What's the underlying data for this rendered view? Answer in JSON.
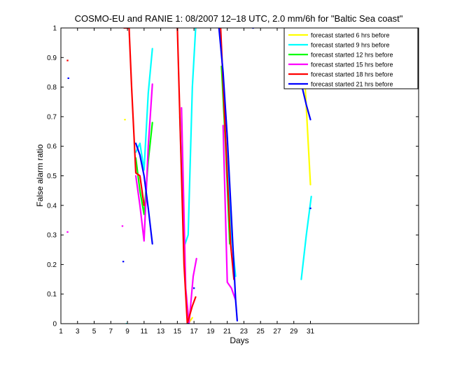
{
  "chart_data": {
    "type": "line",
    "title": "COSMO-EU and RANIE 1: 08/2007 12–18 UTC, 2.0 mm/6h for \"Baltic Sea coast\"",
    "xlabel": "Days",
    "ylabel": "False alarm ratio",
    "xlim": [
      1,
      44
    ],
    "ylim": [
      0,
      1
    ],
    "x_ticks": [
      1,
      3,
      5,
      7,
      9,
      11,
      13,
      15,
      17,
      19,
      21,
      23,
      25,
      27,
      29,
      31
    ],
    "y_ticks": [
      0,
      0.1,
      0.2,
      0.3,
      0.4,
      0.5,
      0.6,
      0.7,
      0.8,
      0.9,
      1
    ],
    "y_tick_labels": [
      "0",
      "0.1",
      "0.2",
      "0.3",
      "0.4",
      "0.5",
      "0.6",
      "0.7",
      "0.8",
      "0.9",
      "1"
    ],
    "grid": false,
    "legend_position": "top-right",
    "series": [
      {
        "name": "forecast started 6 hrs before",
        "color": "#ffff00",
        "segments": [
          [
            [
              8.7,
              0.69
            ]
          ],
          [
            [
              16.3,
              0.0
            ],
            [
              16.8,
              0.02
            ]
          ],
          [
            [
              30.0,
              1.0
            ],
            [
              30.5,
              0.73
            ],
            [
              31.0,
              0.47
            ]
          ]
        ]
      },
      {
        "name": "forecast started 9 hrs before",
        "color": "#00ffff",
        "segments": [
          [
            [
              8.9,
              0.0
            ]
          ],
          [
            [
              10.0,
              0.58
            ],
            [
              10.5,
              0.61
            ],
            [
              11.0,
              0.52
            ],
            [
              11.5,
              0.78
            ],
            [
              12.0,
              0.93
            ]
          ],
          [
            [
              15.3,
              0.7
            ],
            [
              15.8,
              0.26
            ],
            [
              16.3,
              0.3
            ],
            [
              16.8,
              0.8
            ],
            [
              17.2,
              1.0
            ]
          ],
          [
            [
              20.5,
              0.78
            ],
            [
              21.0,
              0.53
            ],
            [
              21.5,
              0.3
            ],
            [
              22.0,
              0.16
            ]
          ],
          [
            [
              29.9,
              0.15
            ],
            [
              30.5,
              0.3
            ],
            [
              31.1,
              0.43
            ]
          ]
        ]
      },
      {
        "name": "forecast started 12 hrs before",
        "color": "#00ff00",
        "segments": [
          [
            [
              10.0,
              0.56
            ],
            [
              10.5,
              0.45
            ],
            [
              11.0,
              0.37
            ],
            [
              11.5,
              0.55
            ],
            [
              12.0,
              0.68
            ]
          ],
          [
            [
              16.3,
              0.0
            ]
          ],
          [
            [
              20.3,
              0.87
            ],
            [
              20.8,
              0.6
            ],
            [
              21.3,
              0.27
            ]
          ]
        ]
      },
      {
        "name": "forecast started 15 hrs before",
        "color": "#ff00ff",
        "segments": [
          [
            [
              1.8,
              0.31
            ]
          ],
          [
            [
              8.4,
              0.33
            ]
          ],
          [
            [
              10.0,
              0.5
            ],
            [
              10.5,
              0.4
            ],
            [
              11.0,
              0.28
            ],
            [
              11.5,
              0.6
            ],
            [
              12.0,
              0.81
            ]
          ],
          [
            [
              15.5,
              0.73
            ],
            [
              16.0,
              0.12
            ],
            [
              16.4,
              0.0
            ],
            [
              16.9,
              0.16
            ],
            [
              17.3,
              0.22
            ]
          ],
          [
            [
              20.5,
              0.67
            ],
            [
              21.0,
              0.14
            ],
            [
              21.5,
              0.12
            ],
            [
              22.0,
              0.08
            ]
          ]
        ]
      },
      {
        "name": "forecast started 18 hrs before",
        "color": "#ff0000",
        "segments": [
          [
            [
              1.8,
              0.89
            ]
          ],
          [
            [
              8.6,
              1.0
            ],
            [
              9.2,
              1.0
            ],
            [
              9.5,
              0.8
            ],
            [
              10.0,
              0.51
            ],
            [
              10.5,
              0.5
            ],
            [
              11.0,
              0.4
            ]
          ],
          [
            [
              15.0,
              1.0
            ],
            [
              15.4,
              0.6
            ],
            [
              15.8,
              0.2
            ],
            [
              16.2,
              0.0
            ],
            [
              16.8,
              0.06
            ],
            [
              17.2,
              0.09
            ]
          ],
          [
            [
              20.2,
              1.0
            ],
            [
              20.6,
              0.75
            ],
            [
              21.0,
              0.5
            ],
            [
              21.4,
              0.27
            ],
            [
              21.8,
              0.15
            ]
          ]
        ]
      },
      {
        "name": "forecast started 21 hrs before",
        "color": "#0000ff",
        "segments": [
          [
            [
              1.9,
              0.83
            ]
          ],
          [
            [
              8.5,
              0.21
            ]
          ],
          [
            [
              10.0,
              0.61
            ],
            [
              10.5,
              0.57
            ],
            [
              11.0,
              0.5
            ],
            [
              11.5,
              0.39
            ],
            [
              12.0,
              0.27
            ]
          ],
          [
            [
              16.3,
              0.0
            ]
          ],
          [
            [
              17.0,
              0.12
            ]
          ],
          [
            [
              20.0,
              1.0
            ],
            [
              20.5,
              0.85
            ],
            [
              21.0,
              0.63
            ],
            [
              21.5,
              0.36
            ],
            [
              22.0,
              0.08
            ],
            [
              22.2,
              0.01
            ]
          ],
          [
            [
              24.1,
              1.0
            ]
          ],
          [
            [
              30.0,
              0.8
            ],
            [
              30.5,
              0.74
            ],
            [
              31.0,
              0.69
            ]
          ],
          [
            [
              31.0,
              0.39
            ]
          ]
        ]
      }
    ]
  }
}
